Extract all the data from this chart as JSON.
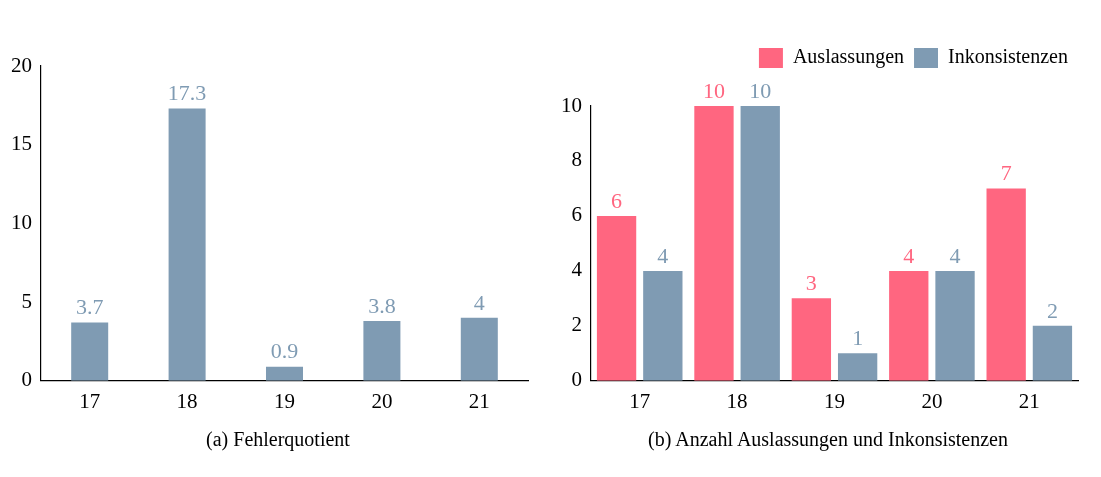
{
  "chart_data": [
    {
      "type": "bar",
      "title": "(a) Fehlerquotient",
      "categories": [
        "17",
        "18",
        "19",
        "20",
        "21"
      ],
      "values": [
        3.7,
        17.3,
        0.9,
        3.8,
        4
      ],
      "color": "#7f9bb3",
      "ylim": [
        0,
        20
      ],
      "yticks": [
        0,
        5,
        10,
        15,
        20
      ],
      "data_labels": true,
      "grid": false,
      "legend": false
    },
    {
      "type": "bar",
      "title": "(b) Anzahl Auslassungen und Inkonsistenzen",
      "categories": [
        "17",
        "18",
        "19",
        "20",
        "21"
      ],
      "series": [
        {
          "name": "Auslassungen",
          "color": "#ff6680",
          "values": [
            6,
            10,
            3,
            4,
            7
          ]
        },
        {
          "name": "Inkonsistenzen",
          "color": "#7f9bb3",
          "values": [
            4,
            10,
            1,
            4,
            2
          ]
        }
      ],
      "ylim": [
        0,
        10
      ],
      "yticks": [
        0,
        2,
        4,
        6,
        8,
        10
      ],
      "data_labels": true,
      "grid": false,
      "legend": "top right"
    }
  ]
}
